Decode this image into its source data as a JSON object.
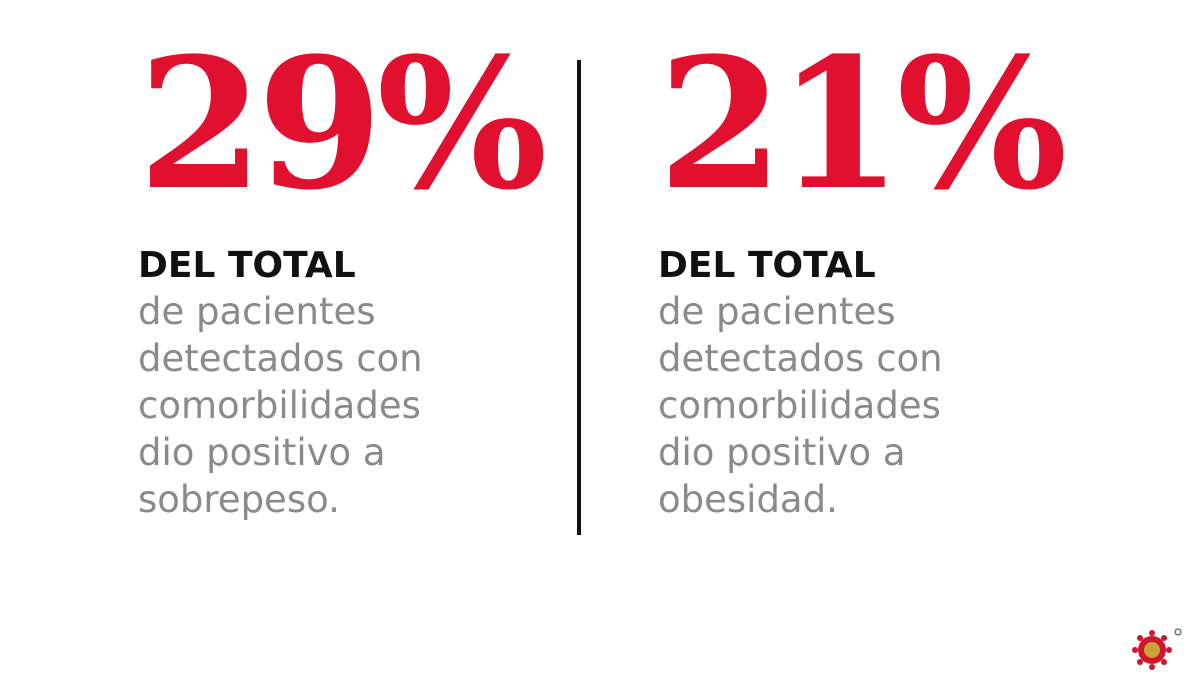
{
  "stats": [
    {
      "value": "29%",
      "heading": "DEL TOTAL",
      "lines": [
        "de pacientes",
        "detectados con",
        "comorbilidades",
        "dio positivo a",
        "sobrepeso."
      ]
    },
    {
      "value": "21%",
      "heading": "DEL TOTAL",
      "lines": [
        "de pacientes",
        "detectados con",
        "comorbilidades",
        "dio positivo a",
        "obesidad."
      ]
    }
  ]
}
